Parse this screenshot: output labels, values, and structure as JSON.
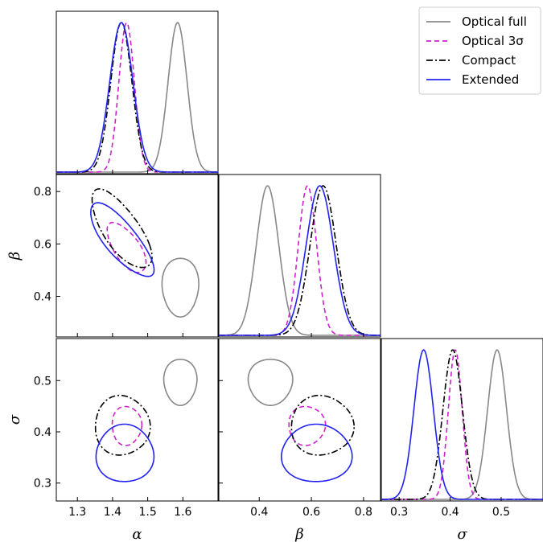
{
  "chart_data": {
    "type": "corner",
    "parameters": [
      {
        "key": "alpha",
        "label": "α",
        "range": [
          1.24,
          1.7
        ],
        "ticks": [
          "1.3",
          "1.4",
          "1.5",
          "1.6"
        ],
        "tick_values": [
          1.3,
          1.4,
          1.5,
          1.6
        ]
      },
      {
        "key": "beta",
        "label": "β",
        "range": [
          0.245,
          0.865
        ],
        "ticks": [
          "0.4",
          "0.6",
          "0.8"
        ],
        "tick_values": [
          0.4,
          0.6,
          0.8
        ]
      },
      {
        "key": "sigma",
        "label": "σ",
        "range": [
          0.265,
          0.582
        ],
        "ticks": [
          "0.3",
          "0.4",
          "0.5"
        ],
        "tick_values": [
          0.3,
          0.4,
          0.5
        ]
      }
    ],
    "legend": {
      "placement": "top-right"
    },
    "series": [
      {
        "name": "Optical full",
        "color": "#888888",
        "dash": "solid",
        "marginals": {
          "alpha": {
            "mean": 1.585,
            "sd": 0.027
          },
          "beta": {
            "mean": 0.432,
            "sd": 0.043
          },
          "sigma": {
            "mean": 0.492,
            "sd": 0.0185
          }
        },
        "contours": {
          "alpha_beta": {
            "cx": 1.593,
            "cy": 0.437,
            "rx": 0.052,
            "ry": 0.112,
            "tilt": 0
          },
          "alpha_sigma": {
            "cx": 1.593,
            "cy": 0.498,
            "rx": 0.047,
            "ry": 0.045,
            "tilt": 0
          },
          "beta_sigma": {
            "cx": 0.443,
            "cy": 0.498,
            "rx": 0.085,
            "ry": 0.045,
            "tilt": 0
          }
        }
      },
      {
        "name": "Optical 3σ",
        "color": "#cc22cc",
        "dash": "dashed",
        "marginals": {
          "alpha": {
            "mean": 1.44,
            "sd": 0.022
          },
          "beta": {
            "mean": 0.585,
            "sd": 0.035
          },
          "sigma": {
            "mean": 0.41,
            "sd": 0.0135
          }
        },
        "contours": {
          "alpha_beta": {
            "cx": 1.44,
            "cy": 0.585,
            "rx": 0.055,
            "ry": 0.095,
            "tilt": 0.35
          },
          "alpha_sigma": {
            "cx": 1.44,
            "cy": 0.412,
            "rx": 0.042,
            "ry": 0.038,
            "tilt": 0
          },
          "beta_sigma": {
            "cx": 0.582,
            "cy": 0.412,
            "rx": 0.07,
            "ry": 0.038,
            "tilt": 0
          }
        }
      },
      {
        "name": "Compact",
        "color": "#000000",
        "dash": "dashdot",
        "marginals": {
          "alpha": {
            "mean": 1.425,
            "sd": 0.03
          },
          "beta": {
            "mean": 0.645,
            "sd": 0.05
          },
          "sigma": {
            "mean": 0.405,
            "sd": 0.019
          }
        },
        "contours": {
          "alpha_beta": {
            "cx": 1.425,
            "cy": 0.655,
            "rx": 0.085,
            "ry": 0.15,
            "tilt": 0.4
          },
          "alpha_sigma": {
            "cx": 1.427,
            "cy": 0.412,
            "rx": 0.078,
            "ry": 0.058,
            "tilt": 0
          },
          "beta_sigma": {
            "cx": 0.64,
            "cy": 0.412,
            "rx": 0.12,
            "ry": 0.058,
            "tilt": 0
          }
        }
      },
      {
        "name": "Extended",
        "color": "#2222ee",
        "dash": "solid",
        "marginals": {
          "alpha": {
            "mean": 1.425,
            "sd": 0.033
          },
          "beta": {
            "mean": 0.632,
            "sd": 0.052
          },
          "sigma": {
            "mean": 0.348,
            "sd": 0.019
          }
        },
        "contours": {
          "alpha_beta": {
            "cx": 1.425,
            "cy": 0.615,
            "rx": 0.09,
            "ry": 0.14,
            "tilt": 0.45
          },
          "alpha_sigma": {
            "cx": 1.435,
            "cy": 0.357,
            "rx": 0.082,
            "ry": 0.056,
            "tilt": 0
          },
          "beta_sigma": {
            "cx": 0.62,
            "cy": 0.357,
            "rx": 0.135,
            "ry": 0.056,
            "tilt": 0
          }
        }
      }
    ]
  }
}
